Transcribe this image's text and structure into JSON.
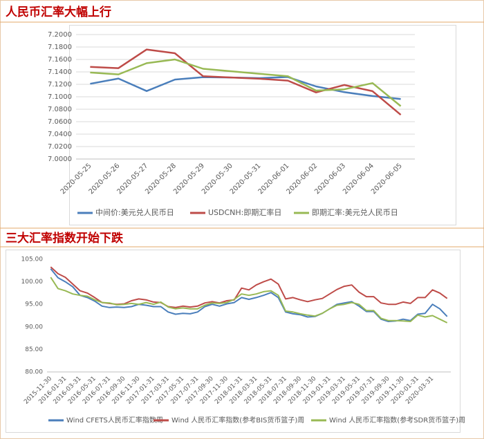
{
  "chart_data": [
    {
      "type": "line",
      "title": "人民币汇率大幅上行",
      "categories": [
        "2020-05-25",
        "2020-05-26",
        "2020-05-27",
        "2020-05-28",
        "2020-05-29",
        "2020-05-30",
        "2020-05-31",
        "2020-06-01",
        "2020-06-02",
        "2020-06-03",
        "2020-06-04",
        "2020-06-05"
      ],
      "series": [
        {
          "name": "中间价:美元兑人民币日",
          "color": "#4a7ebb",
          "values": [
            7.1209,
            7.1293,
            7.1092,
            7.1277,
            7.1316,
            7.131,
            7.13,
            7.1318,
            7.1167,
            7.1075,
            7.1012,
            7.0963
          ]
        },
        {
          "name": "USDCNH:即期汇率日",
          "color": "#be4b48",
          "values": [
            7.148,
            7.146,
            7.176,
            7.17,
            7.133,
            7.131,
            7.129,
            7.126,
            7.107,
            7.119,
            7.109,
            7.071
          ]
        },
        {
          "name": "即期汇率:美元兑人民币日",
          "color": "#98b954",
          "values": [
            7.139,
            7.136,
            7.154,
            7.16,
            7.145,
            7.141,
            7.137,
            7.133,
            7.11,
            7.112,
            7.122,
            7.085
          ]
        }
      ],
      "ylim": [
        7.0,
        7.2
      ],
      "yticks": [
        {
          "value": 7.0,
          "label": "7.0000"
        },
        {
          "value": 7.02,
          "label": "7.0200"
        },
        {
          "value": 7.04,
          "label": "7.0400"
        },
        {
          "value": 7.06,
          "label": "7.0600"
        },
        {
          "value": 7.08,
          "label": "7.0800"
        },
        {
          "value": 7.1,
          "label": "7.1000"
        },
        {
          "value": 7.12,
          "label": "7.1200"
        },
        {
          "value": 7.14,
          "label": "7.1400"
        },
        {
          "value": 7.16,
          "label": "7.1600"
        },
        {
          "value": 7.18,
          "label": "7.1800"
        },
        {
          "value": 7.2,
          "label": "7.2000"
        }
      ],
      "grid": true,
      "legend": "bottom"
    },
    {
      "type": "line",
      "title": "三大汇率指数开始下跌",
      "categories": [
        "2015-11-30",
        null,
        "2016-01-31",
        null,
        "2016-03-31",
        null,
        "2016-05-31",
        null,
        "2016-07-31",
        null,
        "2016-09-30",
        null,
        "2016-11-30",
        null,
        "2017-01-31",
        null,
        "2017-03-31",
        null,
        "2017-05-31",
        null,
        "2017-07-31",
        null,
        "2017-09-30",
        null,
        "2017-11-30",
        null,
        "2018-01-31",
        null,
        "2018-03-31",
        null,
        "2018-05-31",
        null,
        "2018-07-31",
        null,
        "2018-09-30",
        null,
        "2018-11-30",
        null,
        "2019-01-31",
        null,
        "2019-03-31",
        null,
        "2019-05-31",
        null,
        "2019-07-31",
        null,
        "2019-09-30",
        null,
        "2019-11-30",
        null,
        "2020-01-31",
        null,
        "2020-03-31",
        null,
        null
      ],
      "series": [
        {
          "name": "Wind CFETS人民币汇率指数周",
          "color": "#4a7ebb",
          "values": [
            102.9,
            100.9,
            100.0,
            98.9,
            97.0,
            96.5,
            95.7,
            94.6,
            94.3,
            94.4,
            94.3,
            94.5,
            95.0,
            94.8,
            94.5,
            94.5,
            93.3,
            92.8,
            93.0,
            92.9,
            93.3,
            94.5,
            95.0,
            94.6,
            95.1,
            95.4,
            96.5,
            96.1,
            96.5,
            97.0,
            97.6,
            96.5,
            93.3,
            92.9,
            92.7,
            92.2,
            92.3,
            93.0,
            94.0,
            95.0,
            95.3,
            95.6,
            94.6,
            93.4,
            93.4,
            91.7,
            91.2,
            91.3,
            91.7,
            91.4,
            92.8,
            93.0,
            95.0,
            94.0,
            92.3
          ]
        },
        {
          "name": "Wind 人民币汇率指数(参考BIS货币篮子)周",
          "color": "#be4b48",
          "values": [
            103.3,
            101.8,
            101.0,
            99.5,
            98.0,
            97.5,
            96.5,
            95.4,
            95.2,
            95.0,
            95.1,
            95.8,
            96.2,
            96.0,
            95.5,
            95.4,
            94.5,
            94.3,
            94.6,
            94.4,
            94.6,
            95.3,
            95.6,
            95.3,
            95.8,
            96.0,
            98.6,
            98.2,
            99.3,
            100.0,
            100.6,
            99.5,
            96.2,
            96.5,
            96.0,
            95.6,
            96.0,
            96.3,
            97.3,
            98.3,
            99.0,
            99.3,
            97.7,
            96.7,
            96.7,
            95.3,
            95.0,
            95.0,
            95.5,
            95.2,
            96.5,
            96.5,
            98.2,
            97.5,
            96.3
          ]
        },
        {
          "name": "Wind 人民币汇率指数(参考SDR货币篮子)周",
          "color": "#98b954",
          "values": [
            101.0,
            98.5,
            98.0,
            97.3,
            97.0,
            96.8,
            96.0,
            95.4,
            95.3,
            94.9,
            95.0,
            95.2,
            95.0,
            95.4,
            95.0,
            95.5,
            94.4,
            94.0,
            94.2,
            94.0,
            94.0,
            94.8,
            95.3,
            95.2,
            95.4,
            96.1,
            97.3,
            97.0,
            97.3,
            97.8,
            98.0,
            97.0,
            93.5,
            93.3,
            92.9,
            92.6,
            92.4,
            93.0,
            94.0,
            94.8,
            95.0,
            95.4,
            95.0,
            93.6,
            93.6,
            91.9,
            91.4,
            91.4,
            91.3,
            91.2,
            92.6,
            92.2,
            92.5,
            91.7,
            90.9
          ]
        }
      ],
      "ylim": [
        80,
        105
      ],
      "yticks": [
        {
          "value": 80,
          "label": "80.00"
        },
        {
          "value": 85,
          "label": "85.00"
        },
        {
          "value": 90,
          "label": "90.00"
        },
        {
          "value": 95,
          "label": "95.00"
        },
        {
          "value": 100,
          "label": "100.00"
        },
        {
          "value": 105,
          "label": "105.00"
        }
      ],
      "grid": false,
      "legend": "bottom"
    }
  ]
}
